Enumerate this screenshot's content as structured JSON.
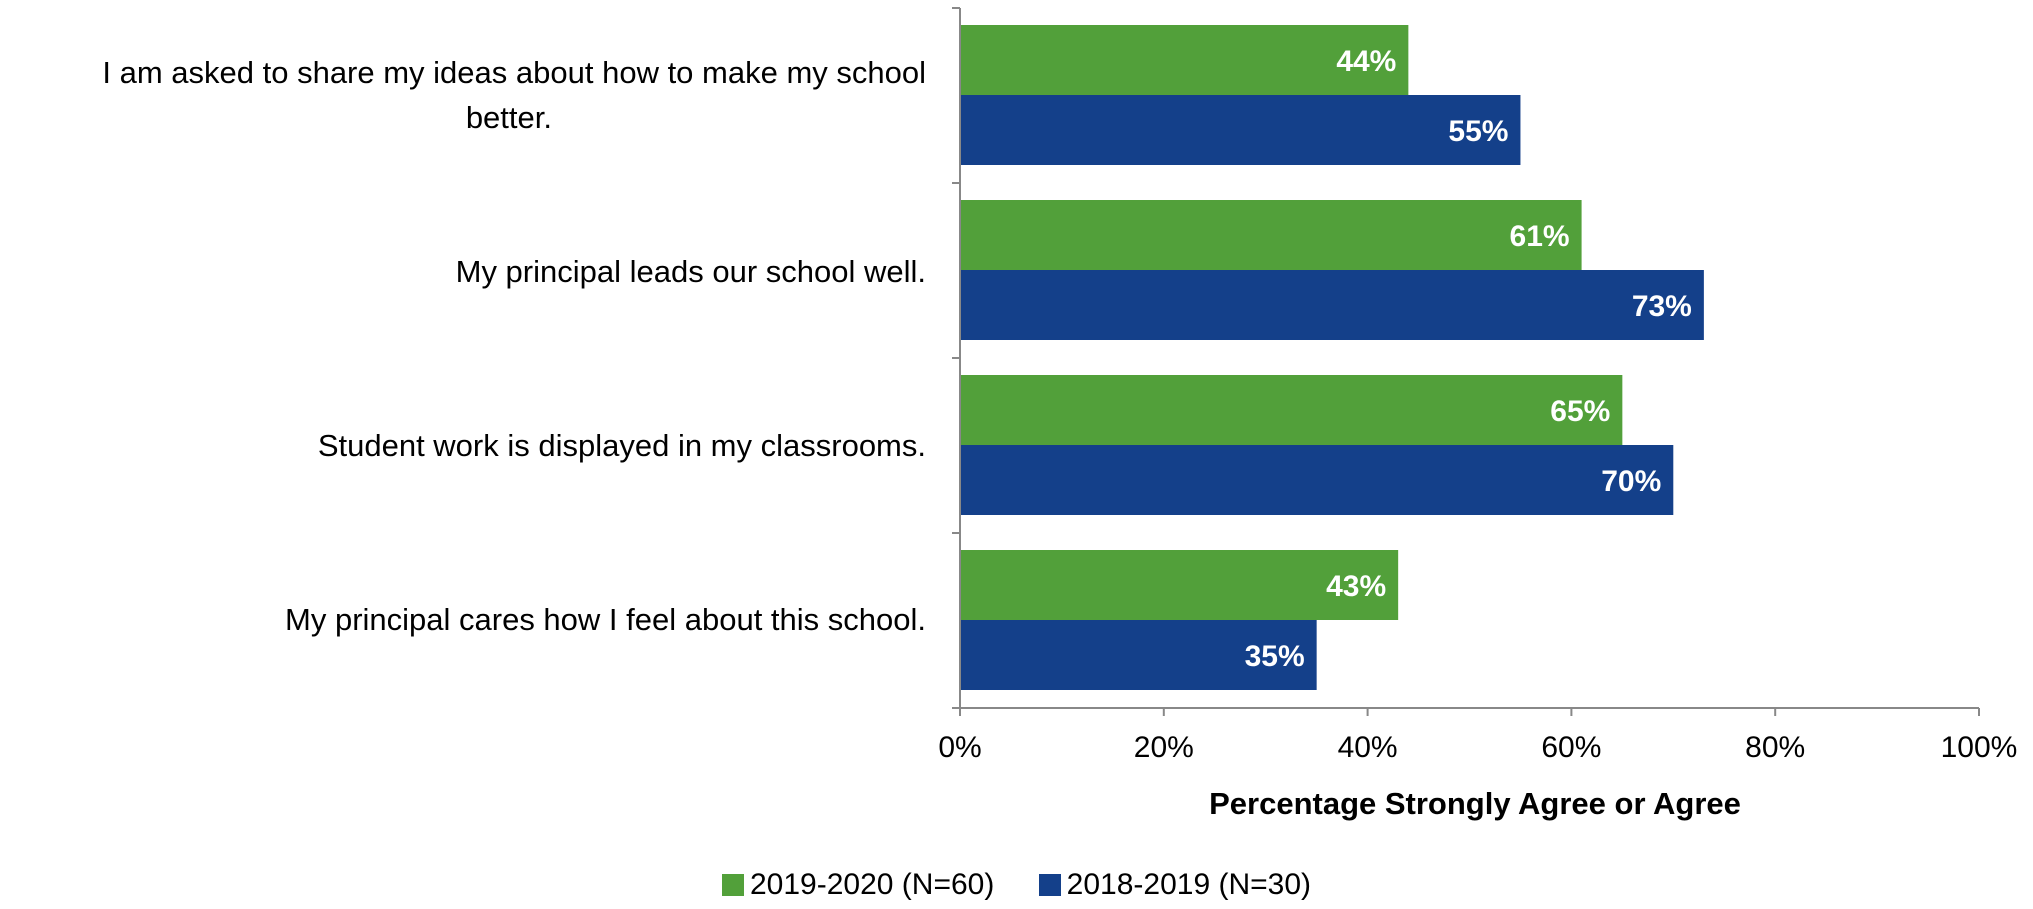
{
  "chart_data": {
    "type": "bar",
    "orientation": "horizontal",
    "categories": [
      "I am asked to share my ideas about how to make my school better.",
      "My principal leads our school well.",
      "Student work is displayed in my classrooms.",
      "My principal cares how I feel about this school."
    ],
    "series": [
      {
        "name": "2019-2020 (N=60)",
        "color": "#52a03a",
        "values": [
          44,
          61,
          65,
          43
        ]
      },
      {
        "name": "2018-2019 (N=30)",
        "color": "#14408a",
        "values": [
          55,
          73,
          70,
          35
        ]
      }
    ],
    "data_labels": [
      [
        "44%",
        "61%",
        "65%",
        "43%"
      ],
      [
        "55%",
        "73%",
        "70%",
        "35%"
      ]
    ],
    "xlabel": "Percentage Strongly Agree or Agree",
    "ylabel": "",
    "xlim": [
      0,
      100
    ],
    "x_ticks": [
      "0%",
      "20%",
      "40%",
      "60%",
      "80%",
      "100%"
    ],
    "grid": false,
    "legend": "bottom"
  },
  "labels": {
    "cat0_line1": "I am asked to share my ideas about how to make my school",
    "cat0_line2": "better.",
    "cat1": "My principal leads our school well.",
    "cat2": "Student work is displayed in my classrooms.",
    "cat3": "My principal cares how I feel about this school."
  },
  "legend": {
    "item0": "2019-2020 (N=60)",
    "item1": "2018-2019 (N=30)",
    "color0": "#52a03a",
    "color1": "#14408a"
  }
}
